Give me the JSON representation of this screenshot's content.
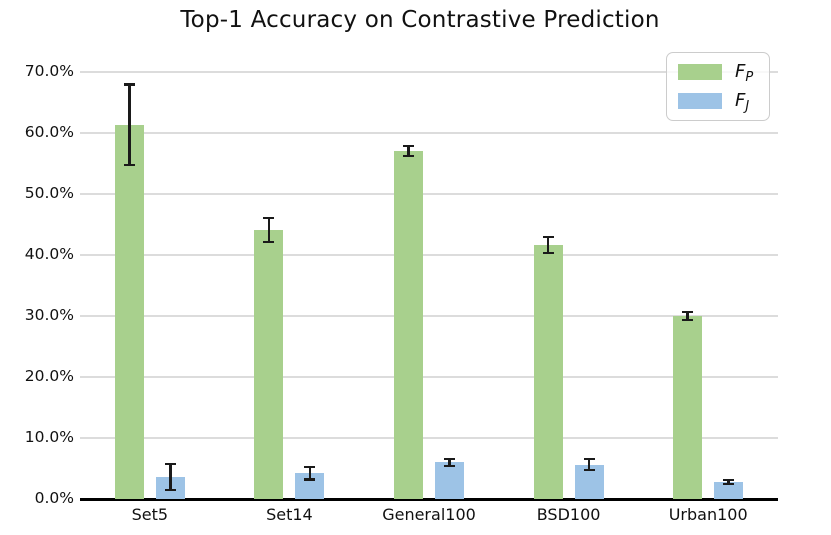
{
  "chart_data": {
    "type": "bar",
    "title": "Top-1 Accuracy on Contrastive Prediction",
    "categories": [
      "Set5",
      "Set14",
      "General100",
      "BSD100",
      "Urban100"
    ],
    "series": [
      {
        "name": "F_P",
        "label_main": "F",
        "label_sub": "P",
        "color": "#a8d08d",
        "values": [
          61.4,
          44.1,
          57.1,
          41.7,
          30.0
        ],
        "errors": [
          6.6,
          2.0,
          0.8,
          1.3,
          0.7
        ]
      },
      {
        "name": "F_J",
        "label_main": "F",
        "label_sub": "J",
        "color": "#9dc3e6",
        "values": [
          3.6,
          4.2,
          6.0,
          5.6,
          2.8
        ],
        "errors": [
          2.1,
          1.0,
          0.6,
          0.9,
          0.3
        ]
      }
    ],
    "xlabel": "",
    "ylabel": "",
    "ylim": [
      0,
      72.5
    ],
    "yticks": [
      {
        "value": 0,
        "label": "0.0%"
      },
      {
        "value": 10,
        "label": "10.0%"
      },
      {
        "value": 20,
        "label": "20.0%"
      },
      {
        "value": 30,
        "label": "30.0%"
      },
      {
        "value": 40,
        "label": "40.0%"
      },
      {
        "value": 50,
        "label": "50.0%"
      },
      {
        "value": 60,
        "label": "60.0%"
      },
      {
        "value": 70,
        "label": "70.0%"
      }
    ],
    "grid": true,
    "legend_position": "upper right",
    "error_bar_color": "#1a1a1a",
    "grid_color": "#dcdcdc",
    "axis_color": "#000000"
  }
}
